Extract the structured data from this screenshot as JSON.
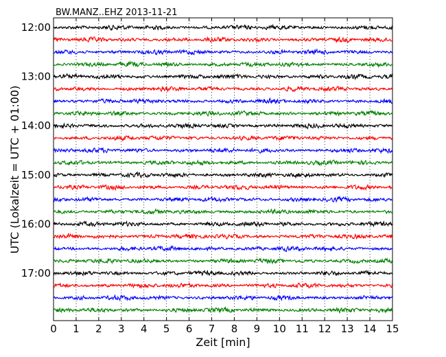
{
  "chart_data": {
    "type": "line",
    "title": "BW.MANZ..EHZ 2013-11-21",
    "xlabel": "Zeit  [min]",
    "ylabel": "UTC (Lokalzeit = UTC + 01:00)",
    "xlim": [
      0,
      15
    ],
    "x_ticks": [
      "0",
      "1",
      "2",
      "3",
      "4",
      "5",
      "6",
      "7",
      "8",
      "9",
      "10",
      "11",
      "12",
      "13",
      "14",
      "15"
    ],
    "y_tick_labels": [
      "12:00",
      "13:00",
      "14:00",
      "15:00",
      "16:00",
      "17:00"
    ],
    "grid": "vertical dotted lines at each minute",
    "trace_minutes": 15,
    "row_start_times": [
      "12:00",
      "12:15",
      "12:30",
      "12:45",
      "13:00",
      "13:15",
      "13:30",
      "13:45",
      "14:00",
      "14:15",
      "14:30",
      "14:45",
      "15:00",
      "15:15",
      "15:30",
      "15:45",
      "16:00",
      "16:15",
      "16:30",
      "16:45",
      "17:00",
      "17:15",
      "17:30",
      "17:45"
    ],
    "trace_colors": [
      "#000000",
      "#ff0000",
      "#0000ff",
      "#008000"
    ]
  }
}
